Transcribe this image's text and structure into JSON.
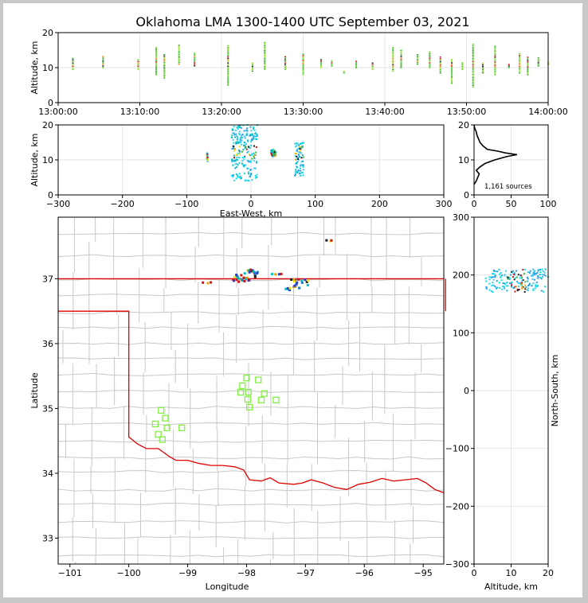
{
  "title": "Oklahoma LMA 1300-1400 UTC September 03, 2021",
  "colors": {
    "county": "#c8c8c8",
    "state": "#e00000",
    "station": "#80f040",
    "grid": "#e6e6e6"
  },
  "panels": {
    "time_height": {
      "ylabel": "Altitude, km",
      "xticks": [
        "13:00:00",
        "13:10:00",
        "13:20:00",
        "13:30:00",
        "13:40:00",
        "13:50:00",
        "14:00:00"
      ],
      "yticks": [
        "0",
        "10",
        "20"
      ]
    },
    "ew_height": {
      "xlabel": "East-West, km",
      "ylabel": "Altitude, km",
      "xticks": [
        "−300",
        "−200",
        "−100",
        "0",
        "100",
        "200",
        "300"
      ],
      "yticks": [
        "0",
        "10",
        "20"
      ]
    },
    "histogram": {
      "xticks": [
        "0",
        "50",
        "100"
      ],
      "yticks": [
        "0",
        "10",
        "20"
      ],
      "sources_label": "1,161 sources"
    },
    "plan": {
      "xlabel": "Longitude",
      "ylabel": "Latitude",
      "xticks": [
        "−101",
        "−100",
        "−99",
        "−98",
        "−97",
        "−96",
        "−95"
      ],
      "yticks": [
        "33",
        "34",
        "35",
        "36",
        "37"
      ]
    },
    "ns_alt": {
      "xlabel": "Altitude, km",
      "ylabel": "North-South, km",
      "xticks": [
        "0",
        "10",
        "20"
      ],
      "yticks": [
        "−300",
        "−200",
        "−100",
        "0",
        "100",
        "200",
        "300"
      ]
    }
  },
  "chart_data": [
    {
      "type": "scatter",
      "panel": "time_height",
      "xlabel": "",
      "ylabel": "Altitude, km",
      "xlim": [
        "13:00:00",
        "14:00:00"
      ],
      "ylim": [
        0,
        20
      ],
      "clusters": [
        {
          "t": 1.8,
          "z": [
            9.5,
            13.0
          ]
        },
        {
          "t": 5.5,
          "z": [
            10.0,
            13.5
          ]
        },
        {
          "t": 9.8,
          "z": [
            9.5,
            12.5
          ]
        },
        {
          "t": 12.0,
          "z": [
            8.0,
            16.0
          ]
        },
        {
          "t": 13.0,
          "z": [
            7.0,
            14.0
          ]
        },
        {
          "t": 14.8,
          "z": [
            11.0,
            16.5
          ]
        },
        {
          "t": 16.7,
          "z": [
            10.5,
            14.5
          ]
        },
        {
          "t": 20.8,
          "z": [
            5.0,
            16.5
          ]
        },
        {
          "t": 23.8,
          "z": [
            9.0,
            11.5
          ]
        },
        {
          "t": 25.3,
          "z": [
            9.5,
            17.5
          ]
        },
        {
          "t": 27.8,
          "z": [
            9.5,
            13.5
          ]
        },
        {
          "t": 30.0,
          "z": [
            8.0,
            14.0
          ]
        },
        {
          "t": 32.2,
          "z": [
            10.0,
            12.5
          ]
        },
        {
          "t": 33.5,
          "z": [
            10.5,
            12.0
          ]
        },
        {
          "t": 35.0,
          "z": [
            8.5,
            9.0
          ]
        },
        {
          "t": 36.5,
          "z": [
            10.0,
            12.0
          ]
        },
        {
          "t": 38.5,
          "z": [
            9.5,
            11.5
          ]
        },
        {
          "t": 41.0,
          "z": [
            9.0,
            16.0
          ]
        },
        {
          "t": 42.0,
          "z": [
            10.0,
            15.0
          ]
        },
        {
          "t": 44.0,
          "z": [
            11.0,
            14.0
          ]
        },
        {
          "t": 45.5,
          "z": [
            10.0,
            14.5
          ]
        },
        {
          "t": 46.8,
          "z": [
            8.5,
            13.0
          ]
        },
        {
          "t": 48.2,
          "z": [
            5.5,
            12.5
          ]
        },
        {
          "t": 49.5,
          "z": [
            9.5,
            11.5
          ]
        },
        {
          "t": 50.8,
          "z": [
            4.5,
            17.0
          ]
        },
        {
          "t": 52.0,
          "z": [
            8.5,
            11.5
          ]
        },
        {
          "t": 53.5,
          "z": [
            8.0,
            16.5
          ]
        },
        {
          "t": 55.2,
          "z": [
            10.0,
            11.0
          ]
        },
        {
          "t": 56.5,
          "z": [
            8.5,
            14.0
          ]
        },
        {
          "t": 57.5,
          "z": [
            8.0,
            13.0
          ]
        },
        {
          "t": 58.8,
          "z": [
            10.5,
            13.0
          ]
        },
        {
          "t": 60.0,
          "z": [
            11.0,
            11.5
          ]
        }
      ]
    },
    {
      "type": "scatter",
      "panel": "ew_height",
      "xlabel": "East-West, km",
      "ylabel": "Altitude, km",
      "xlim": [
        -300,
        300
      ],
      "ylim": [
        0,
        20
      ],
      "clusters": [
        {
          "x": -68,
          "z": [
            9.0,
            12.0
          ],
          "w": 2
        },
        {
          "x": -10,
          "z": [
            4.0,
            20.0
          ],
          "w": 40
        },
        {
          "x": 35,
          "z": [
            11.0,
            13.0
          ],
          "w": 8
        },
        {
          "x": 75,
          "z": [
            5.5,
            15.0
          ],
          "w": 14
        }
      ]
    },
    {
      "type": "line",
      "panel": "histogram",
      "xlim": [
        0,
        100
      ],
      "ylim": [
        0,
        20
      ],
      "altitude": [
        3,
        4,
        5,
        6,
        7,
        8,
        9,
        10,
        11,
        11.5,
        12,
        12.5,
        13,
        14,
        15,
        16,
        17,
        18,
        19,
        20
      ],
      "count": [
        0,
        3,
        5,
        7,
        3,
        8,
        15,
        28,
        45,
        58,
        42,
        32,
        18,
        12,
        8,
        6,
        4,
        3,
        1,
        0
      ]
    },
    {
      "type": "scatter",
      "panel": "plan",
      "xlabel": "Longitude",
      "ylabel": "Latitude",
      "xlim": [
        -101.2,
        -94.65
      ],
      "ylim": [
        32.6,
        37.95
      ],
      "stations": [
        [
          -98.0,
          35.47
        ],
        [
          -98.07,
          35.35
        ],
        [
          -98.1,
          35.25
        ],
        [
          -97.97,
          35.25
        ],
        [
          -97.8,
          35.44
        ],
        [
          -97.7,
          35.23
        ],
        [
          -97.75,
          35.13
        ],
        [
          -97.98,
          35.14
        ],
        [
          -97.95,
          35.02
        ],
        [
          -97.5,
          35.13
        ],
        [
          -99.45,
          34.97
        ],
        [
          -99.38,
          34.85
        ],
        [
          -99.55,
          34.76
        ],
        [
          -99.35,
          34.7
        ],
        [
          -99.1,
          34.7
        ],
        [
          -99.5,
          34.6
        ],
        [
          -99.43,
          34.52
        ]
      ],
      "clusters": [
        {
          "lon": -97.95,
          "lat": [
            36.95,
            37.15
          ]
        },
        {
          "lon": -98.1,
          "lat": [
            36.95,
            37.1
          ]
        },
        {
          "lon": -97.1,
          "lat": [
            36.85,
            37.0
          ]
        },
        {
          "lon": -97.35,
          "lat": [
            36.82,
            36.86
          ]
        },
        {
          "lon": -98.7,
          "lat": [
            36.93,
            36.95
          ]
        },
        {
          "lon": -97.5,
          "lat": [
            37.05,
            37.08
          ]
        },
        {
          "lon": -96.65,
          "lat": [
            37.58,
            37.6
          ]
        }
      ]
    },
    {
      "type": "scatter",
      "panel": "ns_alt",
      "xlabel": "Altitude, km",
      "ylabel": "North-South, km",
      "xlim": [
        0,
        20
      ],
      "ylim": [
        -300,
        300
      ],
      "clusters": [
        {
          "z": [
            3,
            20
          ],
          "y": [
            170,
            210
          ]
        }
      ]
    }
  ]
}
